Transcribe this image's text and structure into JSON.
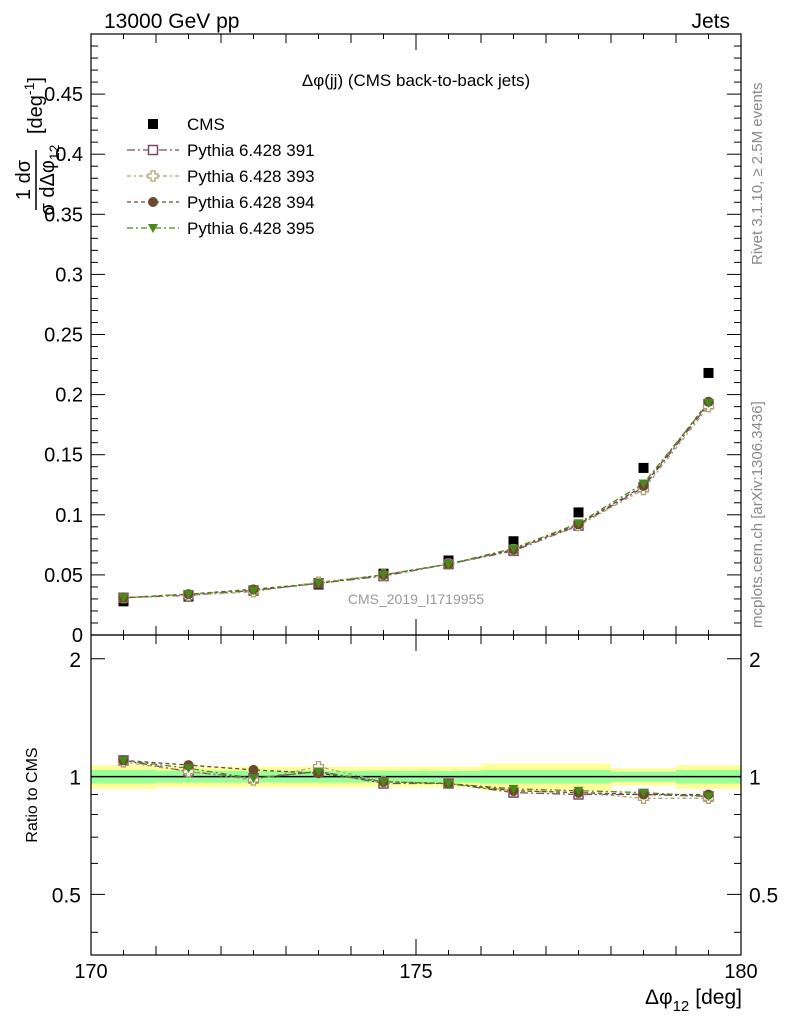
{
  "header": {
    "left": "13000 GeV pp",
    "right": "Jets"
  },
  "side_labels": {
    "top": "Rivet 3.1.10, ≥ 2.5M events",
    "bottom": "mcplots.cern.ch [arXiv:1306.3436]"
  },
  "watermark": "CMS_2019_I1719955",
  "colors": {
    "cms": "#000000",
    "p391": "#7a4a6e",
    "p393": "#b0a070",
    "p394": "#6b4a2e",
    "p395": "#4a8a1a",
    "band_outer": "#ffff99",
    "band_inner": "#99ff99"
  },
  "chart_data": [
    {
      "type": "scatter",
      "title": "Δφ(jj) (CMS back-to-back jets)",
      "ylabel_text": "1  dσ / σ dΔφ12  [deg⁻¹]",
      "ylabel_numerator": "1 dσ",
      "ylabel_denominator": "σ dΔφ",
      "ylabel_sub": "12",
      "ylabel_unit": "[deg",
      "ylabel_sup": "-1",
      "ylabel_close": "]",
      "xlim": [
        170,
        180
      ],
      "ylim": [
        0,
        0.5
      ],
      "yticks": [
        0,
        0.05,
        0.1,
        0.15,
        0.2,
        0.25,
        0.3,
        0.35,
        0.4,
        0.45
      ],
      "ytick_labels": [
        "0",
        "0.05",
        "0.1",
        "0.15",
        "0.2",
        "0.25",
        "0.3",
        "0.35",
        "0.4",
        "0.45"
      ],
      "legend_position": "top-left",
      "x": [
        170.5,
        171.5,
        172.5,
        173.5,
        174.5,
        175.5,
        176.5,
        177.5,
        178.5,
        179.5
      ],
      "series": [
        {
          "name": "CMS",
          "key": "cms",
          "marker": "square-filled",
          "values": [
            0.028,
            0.032,
            0.037,
            0.042,
            0.051,
            0.062,
            0.078,
            0.102,
            0.139,
            0.218
          ]
        },
        {
          "name": "Pythia 6.428 391",
          "key": "p391",
          "marker": "square-open",
          "values": [
            0.031,
            0.033,
            0.037,
            0.043,
            0.049,
            0.059,
            0.07,
            0.091,
            0.123,
            0.192
          ]
        },
        {
          "name": "Pythia 6.428 393",
          "key": "p393",
          "marker": "cross-open",
          "values": [
            0.031,
            0.033,
            0.036,
            0.044,
            0.05,
            0.059,
            0.071,
            0.091,
            0.121,
            0.19
          ]
        },
        {
          "name": "Pythia 6.428 394",
          "key": "p394",
          "marker": "circle-filled",
          "values": [
            0.031,
            0.034,
            0.038,
            0.043,
            0.05,
            0.059,
            0.071,
            0.092,
            0.124,
            0.194
          ]
        },
        {
          "name": "Pythia 6.428 395",
          "key": "p395",
          "marker": "triangle-down-filled",
          "values": [
            0.031,
            0.034,
            0.037,
            0.043,
            0.05,
            0.059,
            0.072,
            0.093,
            0.126,
            0.193
          ]
        }
      ]
    },
    {
      "type": "scatter",
      "ylabel": "Ratio to CMS",
      "xlabel_main": "Δφ",
      "xlabel_sub": "12",
      "xlabel_unit": "[deg]",
      "xlim": [
        170,
        180
      ],
      "ylim": [
        0.35,
        2.3
      ],
      "ytick_labels": [
        "0.5",
        "1",
        "2"
      ],
      "yticks": [
        0.5,
        1,
        2
      ],
      "xtick_labels": [
        "170",
        "175",
        "180"
      ],
      "xticks": [
        170,
        175,
        180
      ],
      "x": [
        170.5,
        171.5,
        172.5,
        173.5,
        174.5,
        175.5,
        176.5,
        177.5,
        178.5,
        179.5
      ],
      "band_outer": [
        0.07,
        0.06,
        0.06,
        0.06,
        0.06,
        0.06,
        0.08,
        0.08,
        0.05,
        0.07
      ],
      "band_inner": [
        0.04,
        0.035,
        0.035,
        0.035,
        0.035,
        0.035,
        0.04,
        0.04,
        0.03,
        0.04
      ],
      "series": [
        {
          "name": "Pythia 6.428 391",
          "key": "p391",
          "marker": "square-open",
          "values": [
            1.1,
            1.03,
            0.99,
            1.03,
            0.96,
            0.96,
            0.91,
            0.9,
            0.9,
            0.89
          ]
        },
        {
          "name": "Pythia 6.428 393",
          "key": "p393",
          "marker": "cross-open",
          "values": [
            1.09,
            1.03,
            0.98,
            1.06,
            0.97,
            0.96,
            0.92,
            0.91,
            0.88,
            0.88
          ]
        },
        {
          "name": "Pythia 6.428 394",
          "key": "p394",
          "marker": "circle-filled",
          "values": [
            1.1,
            1.07,
            1.04,
            1.02,
            0.97,
            0.96,
            0.92,
            0.91,
            0.9,
            0.9
          ]
        },
        {
          "name": "Pythia 6.428 395",
          "key": "p395",
          "marker": "triangle-down-filled",
          "values": [
            1.1,
            1.05,
            0.99,
            1.03,
            0.97,
            0.96,
            0.93,
            0.92,
            0.91,
            0.89
          ]
        }
      ]
    }
  ]
}
